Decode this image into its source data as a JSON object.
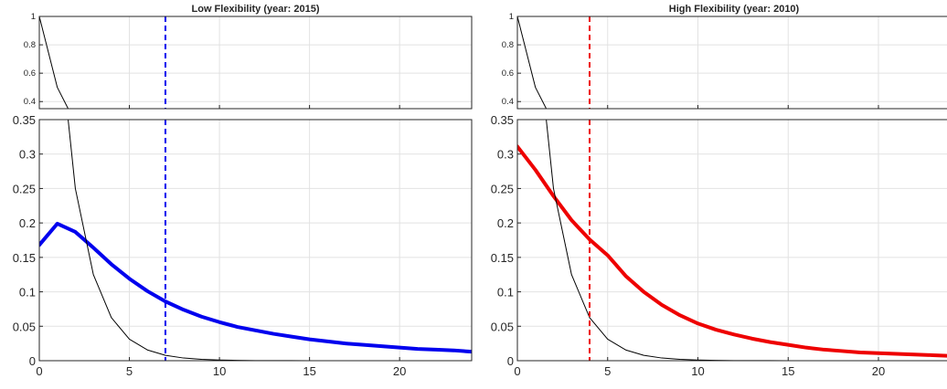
{
  "chart_data": [
    {
      "type": "line",
      "title": "Low Flexibility (year: 2015)",
      "accent_color": "#0000ee",
      "xlim": [
        0,
        24
      ],
      "x_ticks": [
        "0",
        "5",
        "10",
        "15",
        "20"
      ],
      "top_panel": {
        "ylim": [
          0.35,
          1.0
        ],
        "y_ticks": [
          "0.4",
          "0.6",
          "0.8",
          "1"
        ]
      },
      "bottom_panel": {
        "ylim": [
          0,
          0.35
        ],
        "y_ticks": [
          "0",
          "0.05",
          "0.1",
          "0.15",
          "0.2",
          "0.25",
          "0.3",
          "0.35"
        ]
      },
      "series": [
        {
          "color": "#0000ee",
          "style": "thick",
          "x": [
            0,
            1,
            2,
            3,
            4,
            5,
            6,
            7,
            8,
            9,
            10,
            11,
            12,
            13,
            14,
            15,
            16,
            17,
            18,
            19,
            20,
            21,
            22,
            23,
            24
          ],
          "y": [
            0.168,
            0.199,
            0.187,
            0.164,
            0.14,
            0.119,
            0.101,
            0.086,
            0.074,
            0.064,
            0.056,
            0.049,
            0.044,
            0.039,
            0.035,
            0.031,
            0.028,
            0.025,
            0.023,
            0.021,
            0.019,
            0.017,
            0.016,
            0.015,
            0.013
          ]
        },
        {
          "color": "#000000",
          "style": "thin",
          "x": [
            0,
            1,
            2,
            3,
            4,
            5,
            6,
            7,
            8,
            9,
            10,
            11,
            12,
            13,
            14,
            15,
            16,
            17,
            18,
            19,
            20,
            21,
            22,
            23,
            24
          ],
          "y": [
            1.0,
            0.5,
            0.25,
            0.125,
            0.0625,
            0.03125,
            0.015625,
            0.0078,
            0.0039,
            0.002,
            0.001,
            0.0005,
            0.0002,
            0.0001,
            0.0001,
            0,
            0,
            0,
            0,
            0,
            0,
            0,
            0,
            0,
            0
          ]
        }
      ],
      "vline": {
        "x": 7,
        "color": "#0000ee",
        "style": "dashed"
      }
    },
    {
      "type": "line",
      "title": "High Flexibility (year: 2010)",
      "accent_color": "#ee0000",
      "xlim": [
        0,
        24
      ],
      "x_ticks": [
        "0",
        "5",
        "10",
        "15",
        "20"
      ],
      "top_panel": {
        "ylim": [
          0.35,
          1.0
        ],
        "y_ticks": [
          "0.4",
          "0.6",
          "0.8",
          "1"
        ]
      },
      "bottom_panel": {
        "ylim": [
          0,
          0.35
        ],
        "y_ticks": [
          "0",
          "0.05",
          "0.1",
          "0.15",
          "0.2",
          "0.25",
          "0.3",
          "0.35"
        ]
      },
      "series": [
        {
          "color": "#ee0000",
          "style": "thick",
          "x": [
            0,
            1,
            2,
            3,
            4,
            5,
            6,
            7,
            8,
            9,
            10,
            11,
            12,
            13,
            14,
            15,
            16,
            17,
            18,
            19,
            20,
            21,
            22,
            23,
            24
          ],
          "y": [
            0.311,
            0.277,
            0.239,
            0.204,
            0.176,
            0.153,
            0.123,
            0.1,
            0.081,
            0.066,
            0.054,
            0.045,
            0.038,
            0.032,
            0.027,
            0.023,
            0.019,
            0.016,
            0.014,
            0.012,
            0.011,
            0.01,
            0.009,
            0.008,
            0.007
          ]
        },
        {
          "color": "#000000",
          "style": "thin",
          "x": [
            0,
            1,
            2,
            3,
            4,
            5,
            6,
            7,
            8,
            9,
            10,
            11,
            12,
            13,
            14,
            15,
            16,
            17,
            18,
            19,
            20,
            21,
            22,
            23,
            24
          ],
          "y": [
            1.0,
            0.5,
            0.25,
            0.125,
            0.0625,
            0.03125,
            0.015625,
            0.0078,
            0.0039,
            0.002,
            0.001,
            0.0005,
            0.0002,
            0.0001,
            0.0001,
            0,
            0,
            0,
            0,
            0,
            0,
            0,
            0,
            0,
            0
          ]
        }
      ],
      "vline": {
        "x": 4,
        "color": "#ee0000",
        "style": "dashed"
      }
    }
  ]
}
